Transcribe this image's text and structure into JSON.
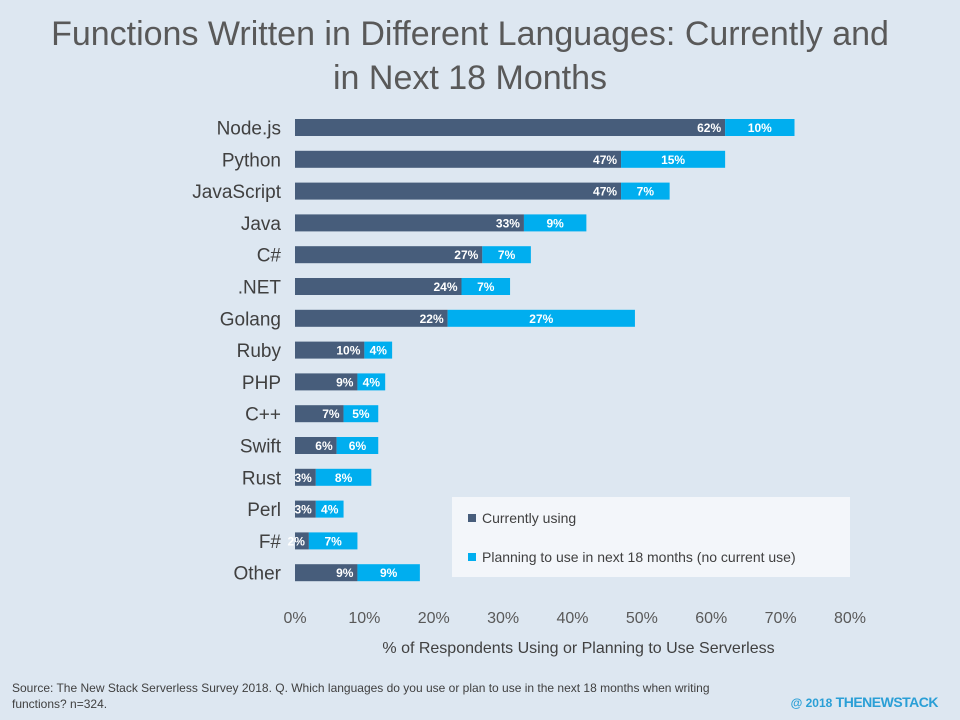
{
  "chart_data": {
    "type": "bar",
    "orientation": "horizontal",
    "stacked": true,
    "title": "Functions Written in Different Languages: Currently and\nin Next 18 Months",
    "xlabel": "% of Respondents Using or Planning to Use Serverless",
    "ylabel": "",
    "xlim": [
      0,
      80
    ],
    "x_ticks": [
      "0%",
      "10%",
      "20%",
      "30%",
      "40%",
      "50%",
      "60%",
      "70%",
      "80%"
    ],
    "categories": [
      "Node.js",
      "Python",
      "JavaScript",
      "Java",
      "C#",
      ".NET",
      "Golang",
      "Ruby",
      "PHP",
      "C++",
      "Swift",
      "Rust",
      "Perl",
      "F#",
      "Other"
    ],
    "series": [
      {
        "name": "Currently using",
        "color": "#475d7b",
        "values": [
          62,
          47,
          47,
          33,
          27,
          24,
          22,
          10,
          9,
          7,
          6,
          3,
          3,
          2,
          9
        ],
        "labels": [
          "62%",
          "47%",
          "47%",
          "33%",
          "27%",
          "24%",
          "22%",
          "10%",
          "9%",
          "7%",
          "6%",
          "3%",
          "3%",
          "2%",
          "9%"
        ]
      },
      {
        "name": "Planning to use in next 18 months (no current use)",
        "color": "#00aeef",
        "values": [
          10,
          15,
          7,
          9,
          7,
          7,
          27,
          4,
          4,
          5,
          6,
          8,
          4,
          7,
          9
        ],
        "labels": [
          "10%",
          "15%",
          "7%",
          "9%",
          "7%",
          "7%",
          "27%",
          "4%",
          "4%",
          "5%",
          "6%",
          "8%",
          "4%",
          "7%",
          "9%"
        ]
      }
    ],
    "legend_position": "bottom-right",
    "grid": false
  },
  "source_text": "Source: The New Stack Serverless Survey 2018. Q. Which languages do you use or plan to use in the next 18 months when writing functions? n=324.",
  "copyright_text": "@ 2018",
  "brand_text": "THENEWSTACK"
}
